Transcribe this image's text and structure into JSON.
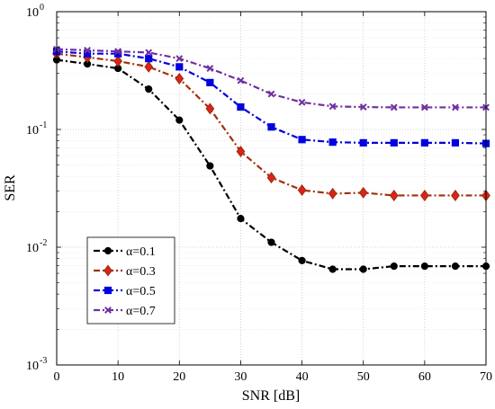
{
  "chart_data": {
    "type": "line",
    "title": "",
    "xlabel": "SNR [dB]",
    "ylabel": "SER",
    "x": [
      0,
      5,
      10,
      15,
      20,
      25,
      30,
      35,
      40,
      45,
      50,
      55,
      60,
      65,
      70
    ],
    "xlim": [
      0,
      70
    ],
    "ylim": [
      0.001,
      1
    ],
    "yscale": "log",
    "grid": true,
    "legend_position": "lower-left",
    "x_ticks": [
      "0",
      "10",
      "20",
      "30",
      "40",
      "50",
      "60",
      "70"
    ],
    "y_ticks": [
      {
        "base": "10",
        "exp": "-3",
        "value": 0.001
      },
      {
        "base": "10",
        "exp": "-2",
        "value": 0.01
      },
      {
        "base": "10",
        "exp": "-1",
        "value": 0.1
      },
      {
        "base": "10",
        "exp": "0",
        "value": 1
      }
    ],
    "series": [
      {
        "name": "α=0.1",
        "color": "#000000",
        "marker": "circle",
        "values": [
          0.39,
          0.36,
          0.33,
          0.22,
          0.12,
          0.049,
          0.0175,
          0.011,
          0.0077,
          0.0065,
          0.0065,
          0.0069,
          0.0069,
          0.0069,
          0.0069
        ]
      },
      {
        "name": "α=0.3",
        "color": "#a0300a",
        "fill": "#e02020",
        "marker": "diamond",
        "values": [
          0.44,
          0.41,
          0.38,
          0.34,
          0.27,
          0.15,
          0.065,
          0.039,
          0.0305,
          0.0285,
          0.029,
          0.0275,
          0.0275,
          0.0275,
          0.0275
        ]
      },
      {
        "name": "α=0.5",
        "color": "#0000e0",
        "marker": "square",
        "values": [
          0.46,
          0.44,
          0.44,
          0.4,
          0.34,
          0.25,
          0.155,
          0.105,
          0.082,
          0.078,
          0.077,
          0.077,
          0.077,
          0.077,
          0.076
        ]
      },
      {
        "name": "α=0.7",
        "color": "#7030a0",
        "marker": "x",
        "values": [
          0.48,
          0.47,
          0.46,
          0.45,
          0.4,
          0.33,
          0.26,
          0.2,
          0.17,
          0.157,
          0.155,
          0.154,
          0.154,
          0.154,
          0.154
        ]
      }
    ]
  }
}
